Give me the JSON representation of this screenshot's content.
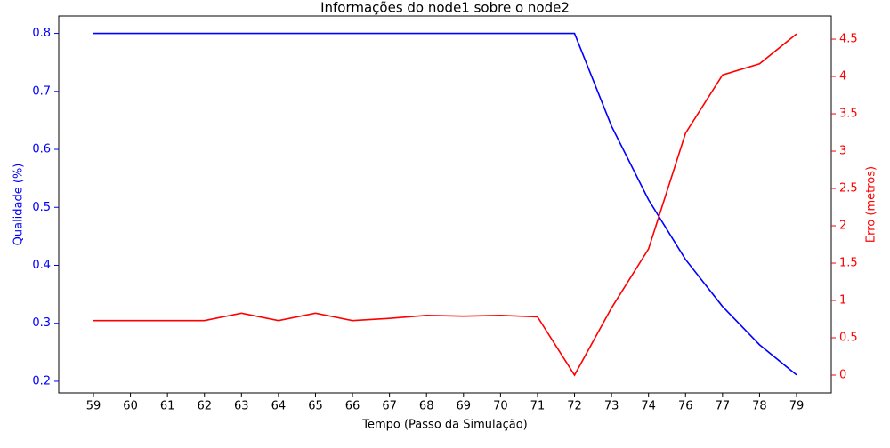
{
  "chart_data": {
    "type": "line",
    "title": "Informações do node1 sobre o node2",
    "x_label": "Tempo (Passo da Simulação)",
    "y_label": "Qualidade (%)",
    "y2_label": "Erro (metros)",
    "y_color": "#0000ff",
    "y2_color": "#ff0000",
    "categories": [
      "59",
      "60",
      "61",
      "62",
      "63",
      "64",
      "65",
      "66",
      "67",
      "68",
      "69",
      "70",
      "71",
      "72",
      "73",
      "74",
      "76",
      "77",
      "78",
      "79"
    ],
    "series": [
      {
        "name": "Qualidade",
        "color": "#0000ff",
        "axis": "y",
        "values": [
          0.8,
          0.8,
          0.8,
          0.8,
          0.8,
          0.8,
          0.8,
          0.8,
          0.8,
          0.8,
          0.8,
          0.8,
          0.8,
          0.8,
          0.64,
          0.513,
          0.41,
          0.329,
          0.263,
          0.211
        ]
      },
      {
        "name": "Erro",
        "color": "#ff0000",
        "axis": "y2",
        "values": [
          0.73,
          0.73,
          0.73,
          0.73,
          0.83,
          0.73,
          0.83,
          0.73,
          0.76,
          0.8,
          0.79,
          0.8,
          0.78,
          0,
          0.9,
          1.69,
          3.24,
          4.02,
          4.17,
          4.57
        ]
      }
    ],
    "ylim": [
      0.18,
      0.83
    ],
    "yticks": [
      0.2,
      0.3,
      0.4,
      0.5,
      0.6,
      0.7,
      0.8
    ],
    "y2lim": [
      -0.238,
      4.81
    ],
    "y2ticks": [
      0,
      0.5,
      1,
      1.5,
      2,
      2.5,
      3,
      3.5,
      4,
      4.5
    ]
  }
}
